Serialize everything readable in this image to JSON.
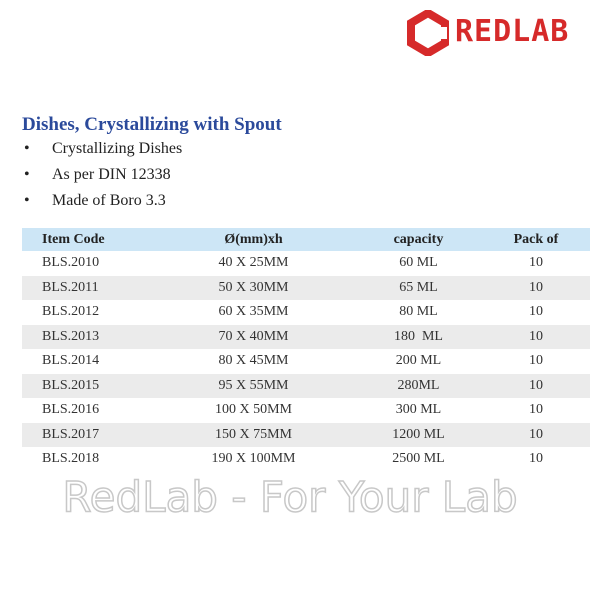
{
  "logo": {
    "text": "REDLAB"
  },
  "product": {
    "title": "Dishes, Crystallizing with Spout",
    "bullets": [
      "Crystallizing Dishes",
      "As per DIN 12338",
      "Made of Boro 3.3"
    ]
  },
  "table": {
    "header": [
      "Item Code",
      "Ø(mm)xh",
      "capacity",
      "Pack of"
    ],
    "rows": [
      [
        "BLS.2010",
        "40 X 25MM",
        "60 ML",
        "10"
      ],
      [
        "BLS.2011",
        "50 X 30MM",
        "65 ML",
        "10"
      ],
      [
        "BLS.2012",
        "60 X 35MM",
        "80 ML",
        "10"
      ],
      [
        "BLS.2013",
        "70 X 40MM",
        "180  ML",
        "10"
      ],
      [
        "BLS.2014",
        "80 X 45MM",
        "200 ML",
        "10"
      ],
      [
        "BLS.2015",
        "95 X 55MM",
        "280ML",
        "10"
      ],
      [
        "BLS.2016",
        "100 X 50MM",
        "300 ML",
        "10"
      ],
      [
        "BLS.2017",
        "150 X 75MM",
        "1200 ML",
        "10"
      ],
      [
        "BLS.2018",
        "190 X 100MM",
        "2500 ML",
        "10"
      ]
    ]
  },
  "watermark": {
    "text": "RedLab - For Your Lab"
  }
}
